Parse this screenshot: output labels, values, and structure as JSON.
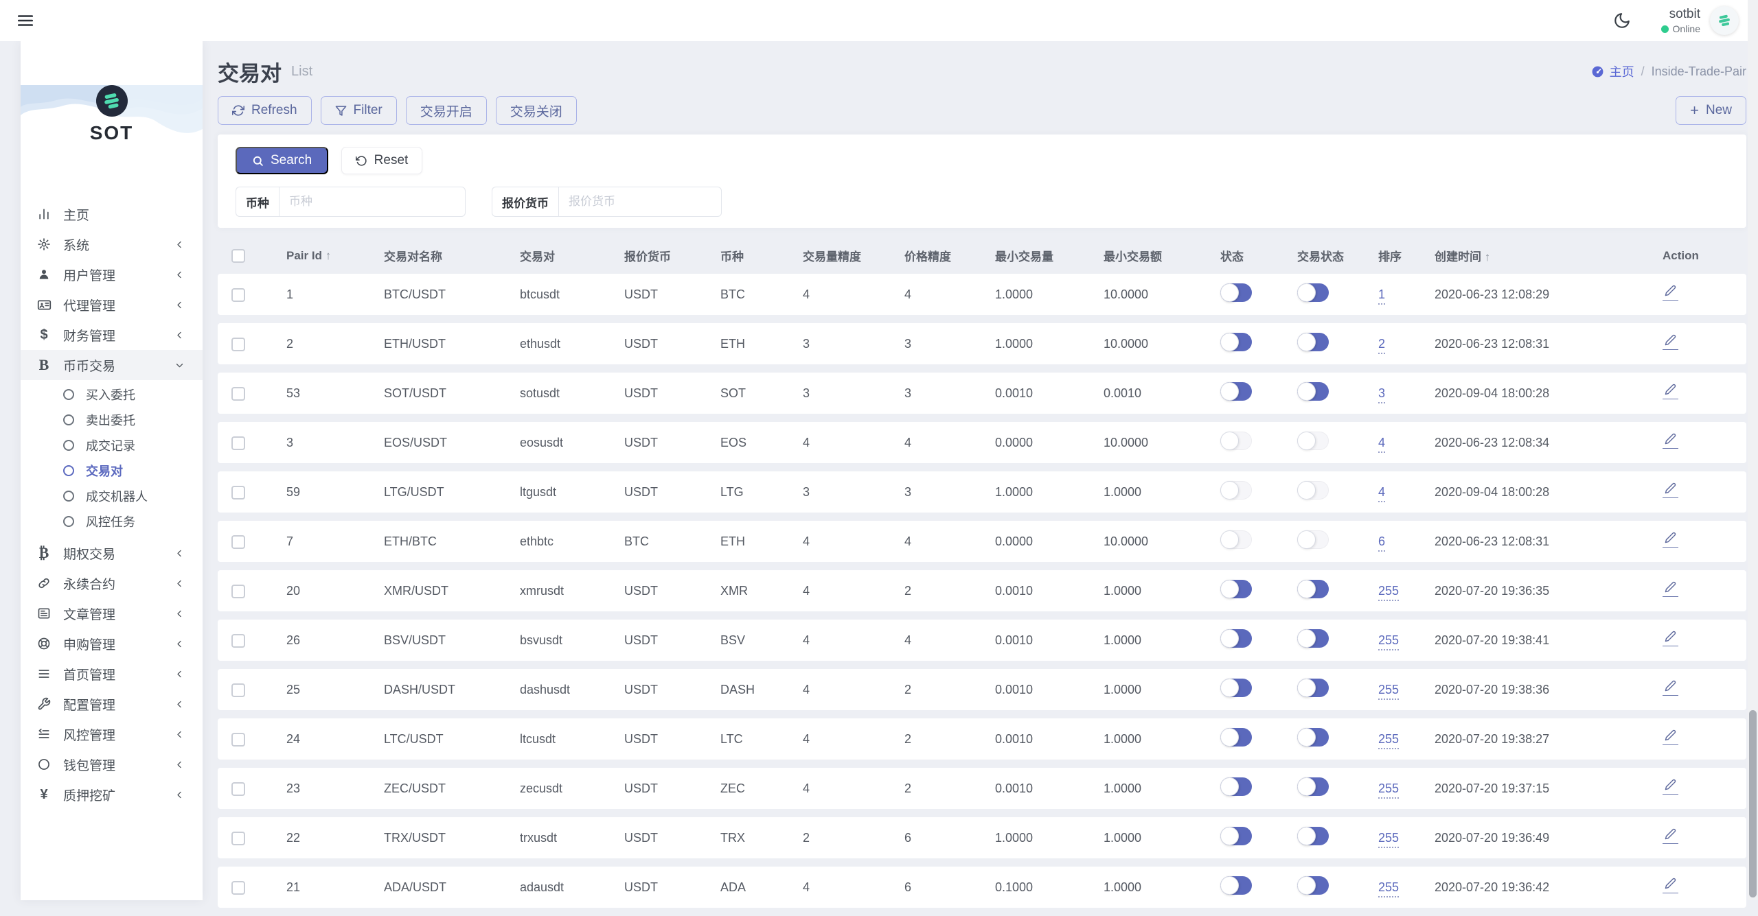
{
  "topbar": {
    "user_name": "sotbit",
    "user_status": "Online"
  },
  "sidebar": {
    "brand": "SOT",
    "items": [
      {
        "icon": "bar-chart-icon",
        "label": "主页"
      },
      {
        "icon": "gear-icon",
        "label": "系统",
        "chevron": "left"
      },
      {
        "icon": "user-icon",
        "label": "用户管理",
        "chevron": "left"
      },
      {
        "icon": "id-card-icon",
        "label": "代理管理",
        "chevron": "left"
      },
      {
        "icon": "dollar-icon",
        "label": "财务管理",
        "chevron": "left"
      },
      {
        "icon": "coin-b-icon",
        "label": "币币交易",
        "chevron": "down",
        "expanded": true,
        "children": [
          {
            "label": "买入委托"
          },
          {
            "label": "卖出委托"
          },
          {
            "label": "成交记录"
          },
          {
            "label": "交易对",
            "active": true
          },
          {
            "label": "成交机器人"
          },
          {
            "label": "风控任务"
          }
        ]
      },
      {
        "icon": "bitcoin-b-icon",
        "label": "期权交易",
        "chevron": "left"
      },
      {
        "icon": "link-icon",
        "label": "永续合约",
        "chevron": "left"
      },
      {
        "icon": "article-icon",
        "label": "文章管理",
        "chevron": "left"
      },
      {
        "icon": "lifebuoy-icon",
        "label": "申购管理",
        "chevron": "left"
      },
      {
        "icon": "list-icon",
        "label": "首页管理",
        "chevron": "left"
      },
      {
        "icon": "wrench-icon",
        "label": "配置管理",
        "chevron": "left"
      },
      {
        "icon": "indent-list-icon",
        "label": "风控管理",
        "chevron": "left"
      },
      {
        "icon": "circle-icon",
        "label": "钱包管理",
        "chevron": "left"
      },
      {
        "icon": "yen-icon",
        "label": "质押挖矿",
        "chevron": "left"
      }
    ]
  },
  "page": {
    "title": "交易对",
    "subtitle": "List",
    "breadcrumb": {
      "home": "主页",
      "separator": "/",
      "current": "Inside-Trade-Pair"
    }
  },
  "toolbar": {
    "refresh_label": "Refresh",
    "filter_label": "Filter",
    "trade_open_label": "交易开启",
    "trade_close_label": "交易关闭",
    "new_label": "New"
  },
  "search": {
    "search_label": "Search",
    "reset_label": "Reset",
    "fields": [
      {
        "label": "币种",
        "placeholder": "币种"
      },
      {
        "label": "报价货币",
        "placeholder": "报价货币"
      }
    ]
  },
  "table": {
    "columns": [
      {
        "key": "checkbox",
        "label": ""
      },
      {
        "key": "pair_id",
        "label": "Pair Id",
        "sort": "↑"
      },
      {
        "key": "name",
        "label": "交易对名称"
      },
      {
        "key": "pair",
        "label": "交易对"
      },
      {
        "key": "quote",
        "label": "报价货币"
      },
      {
        "key": "coin",
        "label": "币种"
      },
      {
        "key": "vol_precision",
        "label": "交易量精度"
      },
      {
        "key": "price_precision",
        "label": "价格精度"
      },
      {
        "key": "min_volume",
        "label": "最小交易量"
      },
      {
        "key": "min_amount",
        "label": "最小交易额"
      },
      {
        "key": "status",
        "label": "状态"
      },
      {
        "key": "trade_status",
        "label": "交易状态"
      },
      {
        "key": "sort",
        "label": "排序"
      },
      {
        "key": "created_at",
        "label": "创建时间",
        "sort": "↑"
      },
      {
        "key": "action",
        "label": "Action"
      }
    ],
    "rows": [
      {
        "pair_id": "1",
        "name": "BTC/USDT",
        "pair": "btcusdt",
        "quote": "USDT",
        "coin": "BTC",
        "vol_precision": "4",
        "price_precision": "4",
        "min_volume": "1.0000",
        "min_amount": "10.0000",
        "status": true,
        "trade_status": true,
        "sort": "1",
        "created_at": "2020-06-23 12:08:29"
      },
      {
        "pair_id": "2",
        "name": "ETH/USDT",
        "pair": "ethusdt",
        "quote": "USDT",
        "coin": "ETH",
        "vol_precision": "3",
        "price_precision": "3",
        "min_volume": "1.0000",
        "min_amount": "10.0000",
        "status": true,
        "trade_status": true,
        "sort": "2",
        "created_at": "2020-06-23 12:08:31"
      },
      {
        "pair_id": "53",
        "name": "SOT/USDT",
        "pair": "sotusdt",
        "quote": "USDT",
        "coin": "SOT",
        "vol_precision": "3",
        "price_precision": "3",
        "min_volume": "0.0010",
        "min_amount": "0.0010",
        "status": true,
        "trade_status": true,
        "sort": "3",
        "created_at": "2020-09-04 18:00:28"
      },
      {
        "pair_id": "3",
        "name": "EOS/USDT",
        "pair": "eosusdt",
        "quote": "USDT",
        "coin": "EOS",
        "vol_precision": "4",
        "price_precision": "4",
        "min_volume": "0.0000",
        "min_amount": "10.0000",
        "status": false,
        "trade_status": false,
        "sort": "4",
        "created_at": "2020-06-23 12:08:34"
      },
      {
        "pair_id": "59",
        "name": "LTG/USDT",
        "pair": "ltgusdt",
        "quote": "USDT",
        "coin": "LTG",
        "vol_precision": "3",
        "price_precision": "3",
        "min_volume": "1.0000",
        "min_amount": "1.0000",
        "status": false,
        "trade_status": false,
        "sort": "4",
        "created_at": "2020-09-04 18:00:28"
      },
      {
        "pair_id": "7",
        "name": "ETH/BTC",
        "pair": "ethbtc",
        "quote": "BTC",
        "coin": "ETH",
        "vol_precision": "4",
        "price_precision": "4",
        "min_volume": "0.0000",
        "min_amount": "10.0000",
        "status": false,
        "trade_status": false,
        "sort": "6",
        "created_at": "2020-06-23 12:08:31"
      },
      {
        "pair_id": "20",
        "name": "XMR/USDT",
        "pair": "xmrusdt",
        "quote": "USDT",
        "coin": "XMR",
        "vol_precision": "4",
        "price_precision": "2",
        "min_volume": "0.0010",
        "min_amount": "1.0000",
        "status": true,
        "trade_status": true,
        "sort": "255",
        "created_at": "2020-07-20 19:36:35"
      },
      {
        "pair_id": "26",
        "name": "BSV/USDT",
        "pair": "bsvusdt",
        "quote": "USDT",
        "coin": "BSV",
        "vol_precision": "4",
        "price_precision": "4",
        "min_volume": "0.0010",
        "min_amount": "1.0000",
        "status": true,
        "trade_status": true,
        "sort": "255",
        "created_at": "2020-07-20 19:38:41"
      },
      {
        "pair_id": "25",
        "name": "DASH/USDT",
        "pair": "dashusdt",
        "quote": "USDT",
        "coin": "DASH",
        "vol_precision": "4",
        "price_precision": "2",
        "min_volume": "0.0010",
        "min_amount": "1.0000",
        "status": true,
        "trade_status": true,
        "sort": "255",
        "created_at": "2020-07-20 19:38:36"
      },
      {
        "pair_id": "24",
        "name": "LTC/USDT",
        "pair": "ltcusdt",
        "quote": "USDT",
        "coin": "LTC",
        "vol_precision": "4",
        "price_precision": "2",
        "min_volume": "0.0010",
        "min_amount": "1.0000",
        "status": true,
        "trade_status": true,
        "sort": "255",
        "created_at": "2020-07-20 19:38:27"
      },
      {
        "pair_id": "23",
        "name": "ZEC/USDT",
        "pair": "zecusdt",
        "quote": "USDT",
        "coin": "ZEC",
        "vol_precision": "4",
        "price_precision": "2",
        "min_volume": "0.0010",
        "min_amount": "1.0000",
        "status": true,
        "trade_status": true,
        "sort": "255",
        "created_at": "2020-07-20 19:37:15"
      },
      {
        "pair_id": "22",
        "name": "TRX/USDT",
        "pair": "trxusdt",
        "quote": "USDT",
        "coin": "TRX",
        "vol_precision": "2",
        "price_precision": "6",
        "min_volume": "1.0000",
        "min_amount": "1.0000",
        "status": true,
        "trade_status": true,
        "sort": "255",
        "created_at": "2020-07-20 19:36:49"
      },
      {
        "pair_id": "21",
        "name": "ADA/USDT",
        "pair": "adausdt",
        "quote": "USDT",
        "coin": "ADA",
        "vol_precision": "4",
        "price_precision": "6",
        "min_volume": "0.1000",
        "min_amount": "1.0000",
        "status": true,
        "trade_status": true,
        "sort": "255",
        "created_at": "2020-07-20 19:36:42"
      }
    ]
  },
  "colors": {
    "accent": "#5b69bc",
    "online_green": "#2ecc8e",
    "brand_teal": "#3ec89a",
    "page_bg": "#edeff4"
  }
}
